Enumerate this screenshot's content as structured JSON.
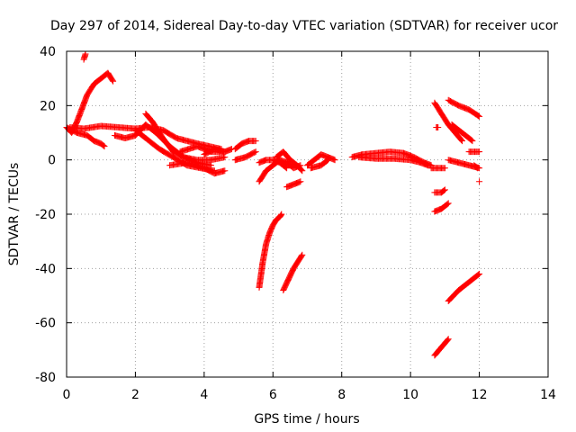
{
  "chart_data": {
    "type": "scatter",
    "title": "Day 297 of 2014, Sidereal Day-to-day VTEC variation (SDTVAR) for receiver ucor",
    "xlabel": "GPS time / hours",
    "ylabel": "SDTVAR / TECUs",
    "xlim": [
      0,
      14
    ],
    "ylim": [
      -80,
      40
    ],
    "xticks": [
      "0",
      "2",
      "4",
      "6",
      "8",
      "10",
      "12",
      "14"
    ],
    "yticks": [
      "-80",
      "-60",
      "-40",
      "-20",
      "0",
      "20",
      "40"
    ],
    "grid": true,
    "marker": "+",
    "color": "#ff0000",
    "arcs": [
      [
        [
          0.0,
          12
        ],
        [
          0.15,
          10
        ],
        [
          0.3,
          14
        ],
        [
          0.45,
          19
        ],
        [
          0.6,
          24
        ],
        [
          0.8,
          28
        ],
        [
          1.0,
          30
        ],
        [
          1.2,
          32
        ],
        [
          1.35,
          29
        ]
      ],
      [
        [
          0.5,
          37
        ],
        [
          0.55,
          39
        ]
      ],
      [
        [
          0.0,
          12
        ],
        [
          0.3,
          10
        ],
        [
          0.6,
          9
        ],
        [
          0.8,
          7
        ],
        [
          1.0,
          6
        ],
        [
          1.1,
          5
        ]
      ],
      [
        [
          0.1,
          12
        ],
        [
          0.5,
          11.5
        ],
        [
          1.0,
          12.5
        ],
        [
          1.5,
          12
        ],
        [
          2.0,
          11.5
        ],
        [
          2.4,
          12
        ],
        [
          2.8,
          11
        ],
        [
          3.2,
          8
        ],
        [
          3.8,
          6
        ],
        [
          4.5,
          4
        ]
      ],
      [
        [
          1.4,
          9
        ],
        [
          1.7,
          8
        ],
        [
          2.0,
          9
        ],
        [
          2.3,
          13
        ],
        [
          2.6,
          10
        ],
        [
          3.0,
          5
        ],
        [
          3.4,
          1
        ],
        [
          3.8,
          -1
        ],
        [
          4.2,
          -2
        ]
      ],
      [
        [
          2.3,
          17
        ],
        [
          2.5,
          14
        ],
        [
          2.8,
          8
        ],
        [
          3.1,
          3
        ],
        [
          3.4,
          1
        ],
        [
          3.8,
          0
        ],
        [
          4.2,
          0
        ],
        [
          4.6,
          1
        ]
      ],
      [
        [
          2.0,
          11
        ],
        [
          2.3,
          8
        ],
        [
          2.7,
          4
        ],
        [
          3.1,
          1
        ],
        [
          3.5,
          -2
        ],
        [
          3.9,
          -3
        ],
        [
          4.3,
          -4
        ]
      ],
      [
        [
          3.0,
          -2
        ],
        [
          3.5,
          -1
        ],
        [
          4.0,
          -3
        ],
        [
          4.3,
          -5
        ],
        [
          4.6,
          -4
        ]
      ],
      [
        [
          3.3,
          3
        ],
        [
          3.8,
          5
        ],
        [
          4.2,
          3
        ],
        [
          4.6,
          3
        ],
        [
          4.8,
          4
        ]
      ],
      [
        [
          4.0,
          2
        ],
        [
          4.3,
          4
        ],
        [
          4.6,
          3
        ]
      ],
      [
        [
          4.9,
          4
        ],
        [
          5.1,
          6
        ],
        [
          5.3,
          7
        ],
        [
          5.5,
          7
        ]
      ],
      [
        [
          4.9,
          0
        ],
        [
          5.2,
          1
        ],
        [
          5.5,
          3
        ]
      ],
      [
        [
          5.6,
          -8
        ],
        [
          5.8,
          -4
        ],
        [
          6.0,
          -2
        ],
        [
          6.2,
          0
        ],
        [
          6.4,
          -1
        ],
        [
          6.6,
          -3
        ],
        [
          6.8,
          -2
        ]
      ],
      [
        [
          5.6,
          -1
        ],
        [
          5.8,
          0
        ],
        [
          6.0,
          0
        ],
        [
          6.2,
          -1
        ],
        [
          6.4,
          -3
        ]
      ],
      [
        [
          6.1,
          1
        ],
        [
          6.3,
          3
        ],
        [
          6.5,
          0
        ],
        [
          6.7,
          -2
        ],
        [
          6.85,
          -4
        ]
      ],
      [
        [
          5.6,
          -47
        ],
        [
          5.7,
          -38
        ],
        [
          5.8,
          -31
        ],
        [
          5.9,
          -27
        ],
        [
          6.0,
          -24
        ],
        [
          6.1,
          -22
        ],
        [
          6.2,
          -21
        ],
        [
          6.25,
          -20
        ]
      ],
      [
        [
          6.3,
          -48
        ],
        [
          6.45,
          -44
        ],
        [
          6.6,
          -40
        ],
        [
          6.75,
          -37
        ],
        [
          6.85,
          -35
        ]
      ],
      [
        [
          6.4,
          -10
        ],
        [
          6.6,
          -9
        ],
        [
          6.8,
          -8
        ]
      ],
      [
        [
          7.0,
          -2
        ],
        [
          7.2,
          0
        ],
        [
          7.4,
          2
        ],
        [
          7.6,
          1
        ],
        [
          7.8,
          0
        ]
      ],
      [
        [
          7.1,
          -3
        ],
        [
          7.4,
          -2
        ],
        [
          7.6,
          0
        ]
      ],
      [
        [
          8.3,
          1
        ],
        [
          8.6,
          2
        ],
        [
          9.0,
          2.5
        ],
        [
          9.4,
          3
        ],
        [
          9.8,
          2.5
        ],
        [
          10.1,
          1
        ],
        [
          10.4,
          -1
        ],
        [
          10.6,
          -2
        ]
      ],
      [
        [
          8.5,
          1
        ],
        [
          9.0,
          0.5
        ],
        [
          9.5,
          0.5
        ],
        [
          10.0,
          0
        ],
        [
          10.3,
          -1
        ],
        [
          10.5,
          -2
        ]
      ],
      [
        [
          10.6,
          -3
        ],
        [
          10.8,
          -3
        ],
        [
          11.0,
          -3
        ]
      ],
      [
        [
          10.75,
          12
        ],
        [
          10.8,
          12
        ]
      ],
      [
        [
          10.7,
          -12
        ],
        [
          10.9,
          -12
        ],
        [
          11.0,
          -11
        ]
      ],
      [
        [
          10.7,
          -19
        ],
        [
          10.9,
          -18
        ],
        [
          11.1,
          -16
        ]
      ],
      [
        [
          10.7,
          21
        ],
        [
          10.9,
          17
        ],
        [
          11.1,
          13
        ],
        [
          11.3,
          10
        ],
        [
          11.5,
          7
        ]
      ],
      [
        [
          11.1,
          22
        ],
        [
          11.4,
          20
        ],
        [
          11.7,
          18.5
        ],
        [
          12.0,
          16
        ]
      ],
      [
        [
          11.2,
          13
        ],
        [
          11.5,
          10
        ],
        [
          11.8,
          7
        ]
      ],
      [
        [
          11.1,
          0
        ],
        [
          11.4,
          -1
        ],
        [
          11.7,
          -2
        ],
        [
          12.0,
          -3
        ]
      ],
      [
        [
          11.7,
          3
        ],
        [
          11.9,
          3
        ],
        [
          12.0,
          3
        ]
      ],
      [
        [
          11.85,
          -2
        ],
        [
          11.95,
          -3
        ]
      ],
      [
        [
          12.0,
          -8
        ]
      ],
      [
        [
          10.7,
          -72
        ],
        [
          10.9,
          -69
        ],
        [
          11.1,
          -66
        ]
      ],
      [
        [
          11.1,
          -52
        ],
        [
          11.4,
          -48
        ],
        [
          11.7,
          -45
        ],
        [
          12.0,
          -42
        ]
      ]
    ]
  }
}
